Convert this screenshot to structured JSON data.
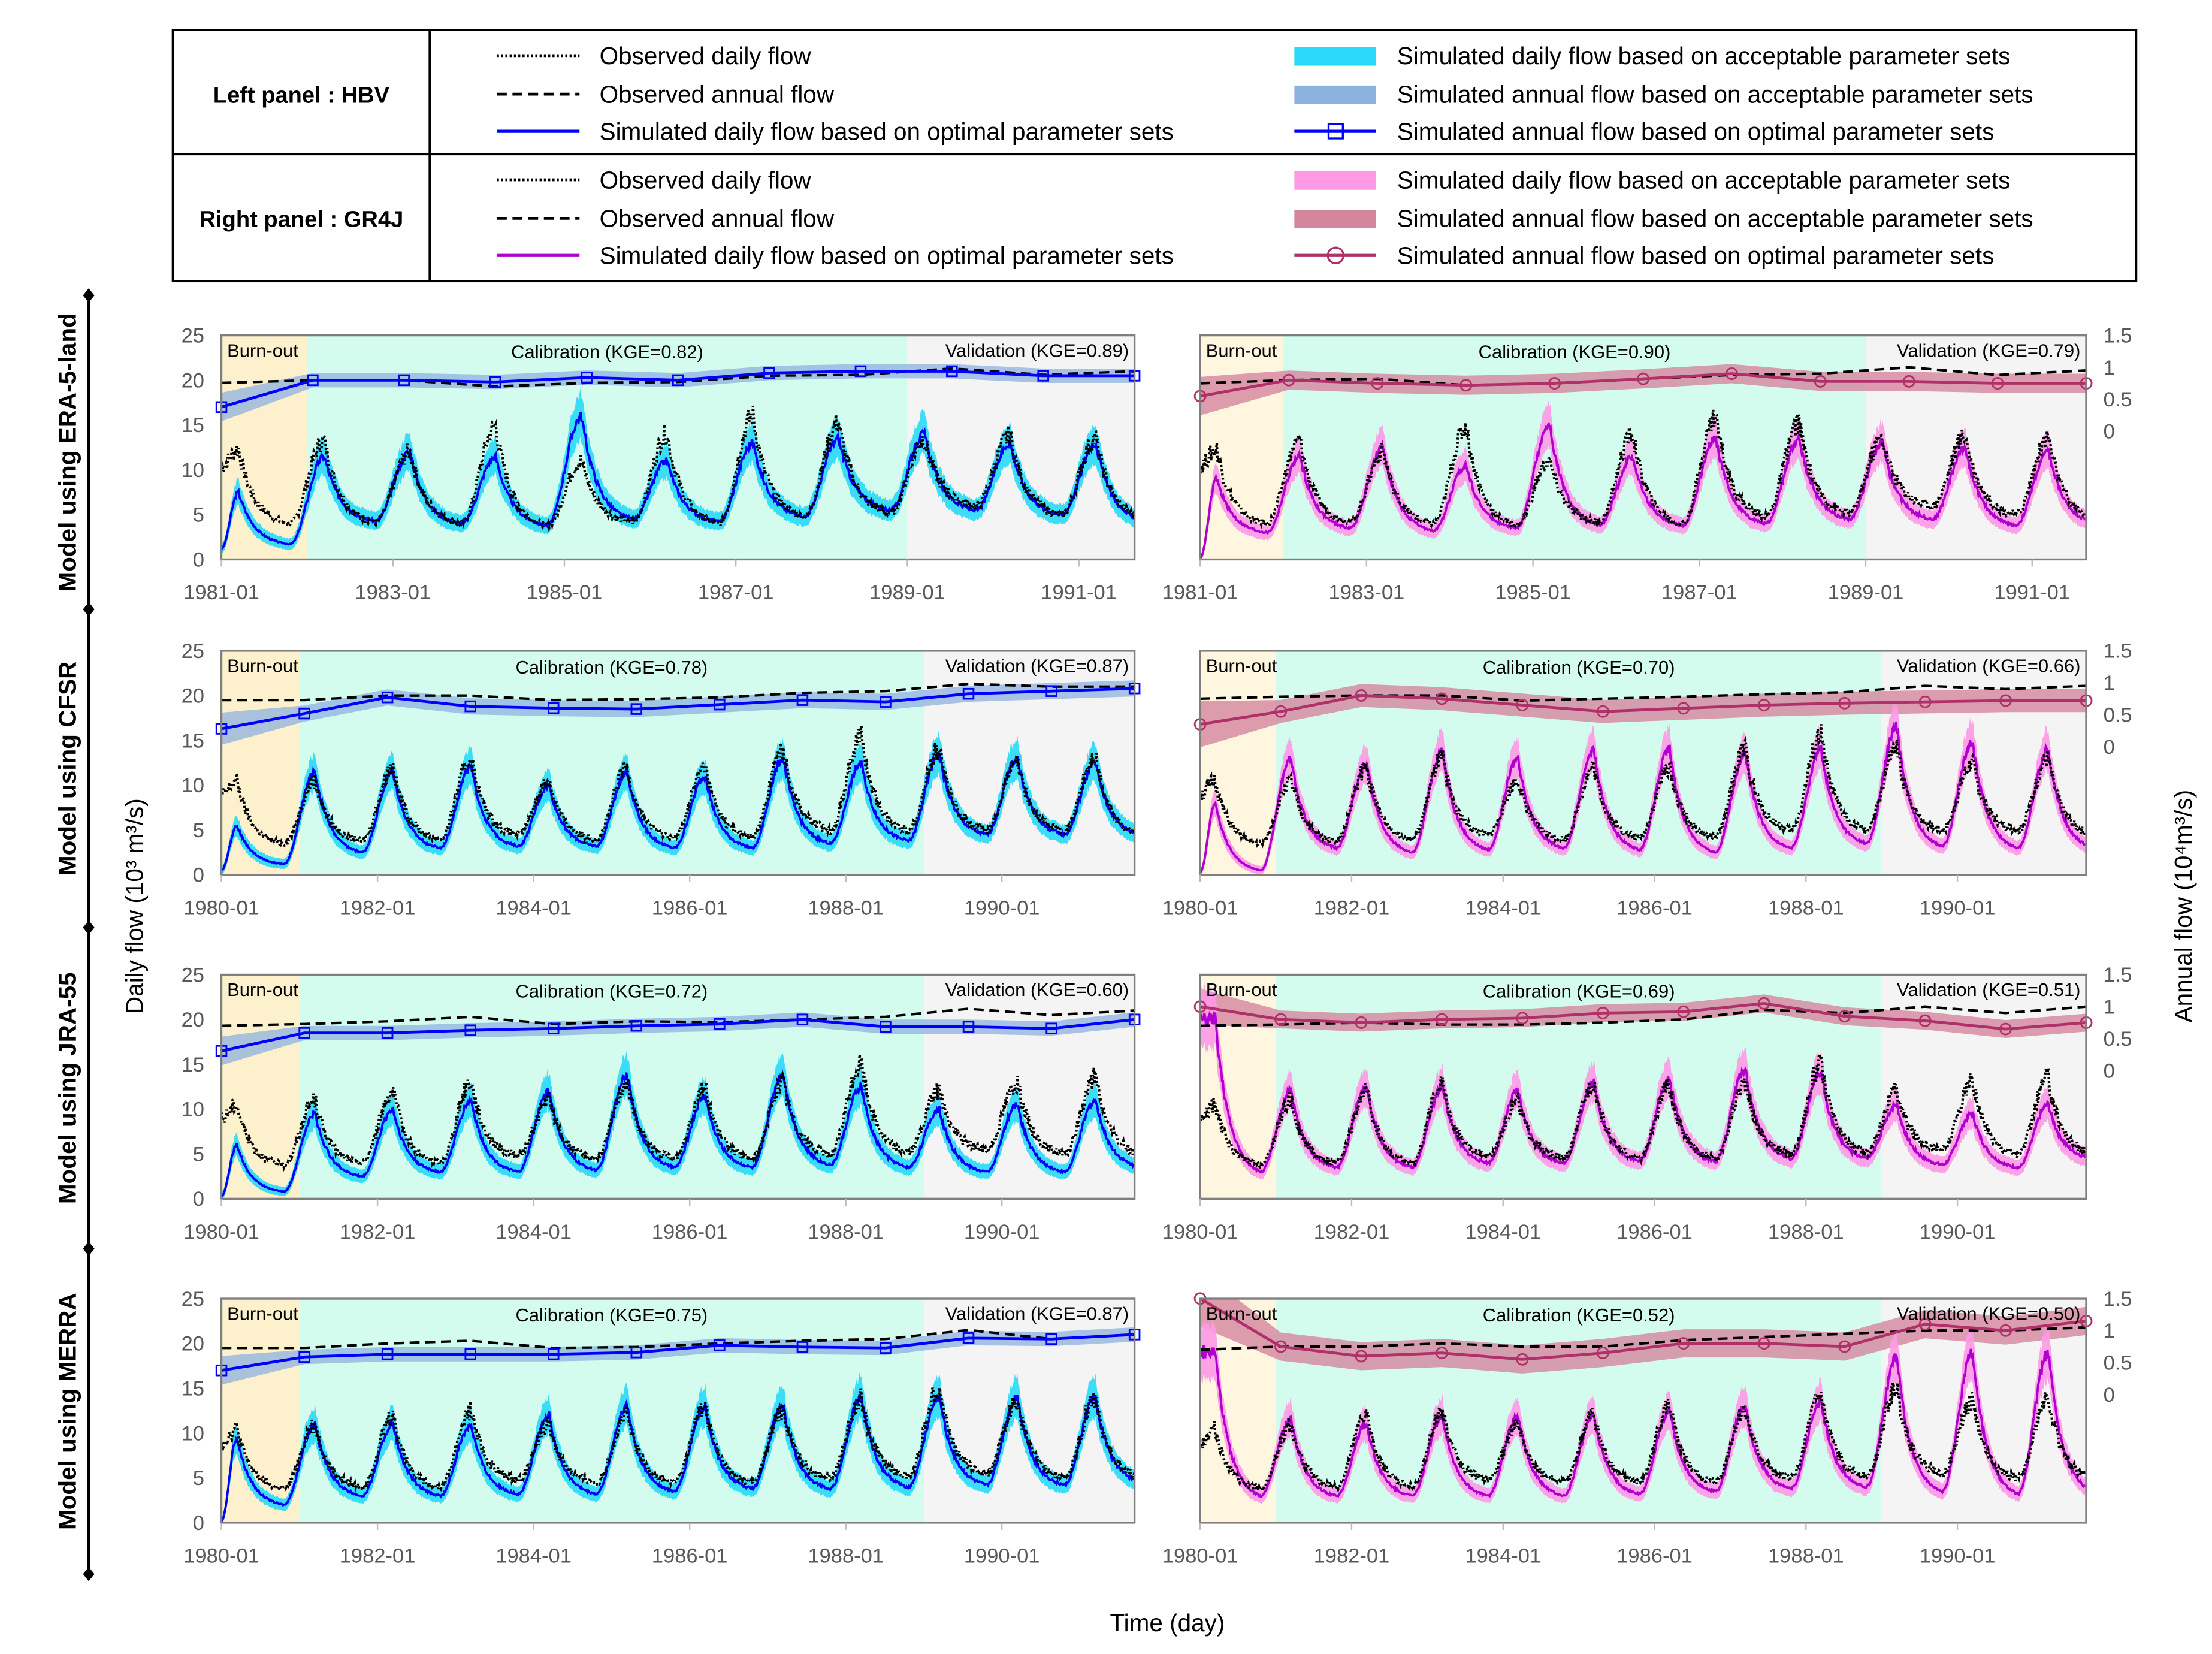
{
  "colors": {
    "obs": "#000000",
    "hbv_line": "#0000ff",
    "hbv_daily_band": "#29d9f7",
    "hbv_annual_band": "#8eb2e0",
    "gr4j_line": "#b000d0",
    "gr4j_daily_band": "#ff99e6",
    "gr4j_annual_band": "#d4869f",
    "gr4j_annual_line": "#b0306a",
    "burnout_bg": "#fdf0cc",
    "calibration_bg": "#d3fcef",
    "validation_bg": "#f4f4f4"
  },
  "legend": {
    "left_title": "Left panel : HBV",
    "right_title": "Right panel : GR4J",
    "hbv_items": [
      "Observed daily flow",
      "Observed annual flow",
      "Simulated daily flow based on optimal parameter sets",
      "Simulated daily flow based on acceptable parameter sets",
      "Simulated annual flow based on acceptable parameter sets",
      "Simulated annual flow based on optimal parameter sets"
    ],
    "gr4j_items": [
      "Observed daily flow",
      "Observed annual flow",
      "Simulated daily flow based on optimal parameter sets",
      "Simulated daily flow based on acceptable parameter sets",
      "Simulated annual flow based on acceptable parameter sets",
      "Simulated annual flow based on optimal parameter sets"
    ]
  },
  "axes": {
    "ylabel_left": "Daily flow (10³ m³/s)",
    "ylabel_right": "Annual flow (10⁴m³/s)",
    "xlabel": "Time (day)",
    "left_ticks": [
      "0",
      "5",
      "10",
      "15",
      "20",
      "25"
    ],
    "right_ticks": [
      "0",
      "0.5",
      "1",
      "1.5"
    ],
    "period_burnout": "Burn-out"
  },
  "rows": [
    "Model using ERA-5-land",
    "Model using CFSR",
    "Model using JRA-55",
    "Model using MERRA"
  ],
  "chart_data": [
    {
      "type": "line",
      "row": 0,
      "model": "HBV",
      "t_range": [
        1981.0,
        1991.65
      ],
      "ylim": [
        0,
        25
      ],
      "burnout_end": 1982.0,
      "calibration_end": 1989.0,
      "x_ticks": [
        "1981-01",
        "1983-01",
        "1985-01",
        "1987-01",
        "1989-01",
        "1991-01"
      ],
      "calibration_label": "Calibration (KGE=0.82)",
      "validation_label": "Validation (KGE=0.89)",
      "annual_sim": [
        17,
        20,
        20,
        19.8,
        20.3,
        20,
        20.8,
        21,
        21,
        20.5,
        20.5
      ],
      "annual_obs": [
        19.7,
        20,
        20,
        19.3,
        19.7,
        19.8,
        20.5,
        20.6,
        21.3,
        20.6,
        21
      ],
      "annual_band": 0.8,
      "years": [
        1981,
        1982,
        1983,
        1984,
        1985,
        1986,
        1987,
        1988,
        1989,
        1990,
        1991
      ],
      "obs_peak": [
        12.3,
        13.3,
        12,
        14.8,
        11,
        14,
        16,
        15.2,
        13.5,
        13.8,
        13.5
      ],
      "obs_trough": [
        4,
        4.2,
        4,
        3.8,
        4.2,
        4,
        4.8,
        5.2,
        6,
        5,
        4.5
      ],
      "sim_peak": [
        7.5,
        11.5,
        12,
        11.5,
        16,
        11,
        13,
        13.5,
        14,
        13,
        13
      ],
      "sim_trough": [
        1.7,
        4.3,
        4,
        3.8,
        4.5,
        4.2,
        4.8,
        5.5,
        5.5,
        5,
        4.2
      ],
      "sim_start": 1.2
    },
    {
      "type": "line",
      "row": 0,
      "model": "GR4J",
      "t_range": [
        1981.0,
        1991.65
      ],
      "ylim": [
        0,
        25
      ],
      "right_ylim": [
        0,
        1.5
      ],
      "burnout_end": 1982.0,
      "calibration_end": 1989.0,
      "x_ticks": [
        "1981-01",
        "1983-01",
        "1985-01",
        "1987-01",
        "1989-01",
        "1991-01"
      ],
      "calibration_label": "Calibration (KGE=0.90)",
      "validation_label": "Validation (KGE=0.79)",
      "annual_sim": [
        0.55,
        0.8,
        0.75,
        0.72,
        0.75,
        0.82,
        0.9,
        0.78,
        0.78,
        0.75,
        0.75
      ],
      "annual_obs": [
        0.75,
        0.8,
        0.82,
        0.72,
        0.75,
        0.82,
        0.88,
        0.9,
        1.0,
        0.88,
        0.95
      ],
      "annual_band": 0.15,
      "years": [
        1981,
        1982,
        1983,
        1984,
        1985,
        1986,
        1987,
        1988,
        1989,
        1990,
        1991
      ],
      "obs_peak": [
        12.3,
        13.3,
        12,
        14.8,
        11,
        14,
        16,
        15.2,
        13.5,
        13.8,
        13.5
      ],
      "obs_trough": [
        4,
        4.2,
        4,
        3.8,
        4.2,
        4,
        4.8,
        5.2,
        6,
        5,
        4.5
      ],
      "sim_peak": [
        9,
        11.5,
        12.5,
        10.5,
        15,
        11.5,
        13.5,
        13.5,
        13,
        12.5,
        12
      ],
      "sim_trough": [
        3,
        3.5,
        3.2,
        3.5,
        3.8,
        3.8,
        4,
        4.5,
        4.5,
        3.8,
        4
      ],
      "sim_start": 0.2
    },
    {
      "type": "line",
      "row": 1,
      "model": "HBV",
      "t_range": [
        1980.0,
        1991.7
      ],
      "ylim": [
        0,
        25
      ],
      "burnout_end": 1981.0,
      "calibration_end": 1989.0,
      "x_ticks": [
        "1980-01",
        "1982-01",
        "1984-01",
        "1986-01",
        "1988-01",
        "1990-01"
      ],
      "calibration_label": "Calibration (KGE=0.78)",
      "validation_label": "Validation (KGE=0.87)",
      "annual_sim": [
        16.3,
        18,
        19.8,
        18.8,
        18.6,
        18.5,
        19,
        19.5,
        19.3,
        20.2,
        20.5,
        20.8
      ],
      "annual_obs": [
        19.5,
        19.5,
        20,
        20,
        19.5,
        19.6,
        19.8,
        20.3,
        20.5,
        21.3,
        21,
        21
      ],
      "annual_band": 0.9,
      "years": [
        1980,
        1981,
        1982,
        1983,
        1984,
        1985,
        1986,
        1987,
        1988,
        1989,
        1990,
        1991
      ],
      "obs_peak": [
        10.5,
        10.5,
        12,
        13,
        10.5,
        12,
        12,
        14,
        15.5,
        14,
        12.5,
        13
      ],
      "obs_trough": [
        3.5,
        3.8,
        4,
        4.5,
        4,
        4.2,
        4.2,
        5,
        5,
        5,
        5,
        4.5
      ],
      "sim_peak": [
        5.5,
        11.5,
        11.5,
        12,
        10,
        11.5,
        11,
        13,
        12.5,
        13.5,
        13,
        12.5
      ],
      "sim_trough": [
        1.2,
        2.5,
        3,
        3.2,
        3.2,
        3,
        3,
        3.5,
        3.8,
        4.5,
        4.5,
        4.5
      ],
      "sim_start": 0.5
    },
    {
      "type": "line",
      "row": 1,
      "model": "GR4J",
      "t_range": [
        1980.0,
        1991.7
      ],
      "ylim": [
        0,
        25
      ],
      "right_ylim": [
        0,
        1.5
      ],
      "burnout_end": 1981.0,
      "calibration_end": 1989.0,
      "x_ticks": [
        "1980-01",
        "1982-01",
        "1984-01",
        "1986-01",
        "1988-01",
        "1990-01"
      ],
      "calibration_label": "Calibration (KGE=0.70)",
      "validation_label": "Validation (KGE=0.66)",
      "annual_sim": [
        0.35,
        0.55,
        0.8,
        0.75,
        0.65,
        0.55,
        0.6,
        0.65,
        0.68,
        0.7,
        0.72,
        0.72
      ],
      "annual_obs": [
        0.75,
        0.78,
        0.8,
        0.8,
        0.72,
        0.75,
        0.78,
        0.82,
        0.85,
        0.95,
        0.9,
        0.95
      ],
      "annual_band": 0.18,
      "years": [
        1980,
        1981,
        1982,
        1983,
        1984,
        1985,
        1986,
        1987,
        1988,
        1989,
        1990,
        1991
      ],
      "obs_peak": [
        10.5,
        10.5,
        12,
        13,
        10.5,
        12,
        12,
        14,
        15.5,
        14,
        12.5,
        13
      ],
      "obs_trough": [
        3.5,
        3.8,
        4,
        4.5,
        4,
        4.2,
        4.2,
        5,
        5,
        5,
        5,
        4.5
      ],
      "sim_peak": [
        8,
        13,
        12.5,
        14,
        13,
        14,
        14,
        13.5,
        14,
        16.5,
        15,
        14
      ],
      "sim_trough": [
        0.5,
        3,
        2.5,
        2.8,
        3,
        2.8,
        2.5,
        3,
        3.5,
        3.2,
        3,
        3
      ],
      "sim_start": 0.3
    },
    {
      "type": "line",
      "row": 2,
      "model": "HBV",
      "t_range": [
        1980.0,
        1991.7
      ],
      "ylim": [
        0,
        25
      ],
      "burnout_end": 1981.0,
      "calibration_end": 1989.0,
      "x_ticks": [
        "1980-01",
        "1982-01",
        "1984-01",
        "1986-01",
        "1988-01",
        "1990-01"
      ],
      "calibration_label": "Calibration (KGE=0.72)",
      "validation_label": "Validation (KGE=0.60)",
      "annual_sim": [
        16.5,
        18.5,
        18.5,
        18.8,
        19,
        19.3,
        19.5,
        20,
        19.2,
        19.2,
        19,
        20
      ],
      "annual_obs": [
        19.3,
        19.5,
        19.8,
        20.3,
        19.5,
        19.8,
        19.7,
        20,
        20.3,
        21.2,
        20.5,
        21
      ],
      "annual_band": 0.8,
      "years": [
        1980,
        1981,
        1982,
        1983,
        1984,
        1985,
        1986,
        1987,
        1988,
        1989,
        1990,
        1991
      ],
      "obs_peak": [
        10.5,
        11,
        12,
        13,
        11,
        13,
        12.5,
        13,
        15,
        12,
        13,
        13.5
      ],
      "obs_trough": [
        3.8,
        4,
        4,
        4.8,
        4.5,
        4.5,
        4.5,
        5,
        5.2,
        5.5,
        5,
        5
      ],
      "sim_peak": [
        6,
        9.5,
        10,
        11,
        12,
        14,
        11.5,
        14,
        12.5,
        10,
        10.5,
        11
      ],
      "sim_trough": [
        0.8,
        2.5,
        3,
        3,
        3.2,
        3.5,
        3.5,
        3.8,
        3.5,
        3,
        3,
        3.5
      ],
      "sim_start": 0.3
    },
    {
      "type": "line",
      "row": 2,
      "model": "GR4J",
      "t_range": [
        1980.0,
        1991.7
      ],
      "ylim": [
        0,
        25
      ],
      "right_ylim": [
        0,
        1.5
      ],
      "burnout_end": 1981.0,
      "calibration_end": 1989.0,
      "x_ticks": [
        "1980-01",
        "1982-01",
        "1984-01",
        "1986-01",
        "1988-01",
        "1990-01"
      ],
      "calibration_label": "Calibration (KGE=0.69)",
      "validation_label": "Validation (KGE=0.51)",
      "annual_sim": [
        1.0,
        0.8,
        0.75,
        0.8,
        0.82,
        0.9,
        0.92,
        1.05,
        0.85,
        0.78,
        0.65,
        0.75
      ],
      "annual_obs": [
        0.7,
        0.72,
        0.75,
        0.72,
        0.72,
        0.75,
        0.8,
        0.95,
        0.9,
        1.0,
        0.9,
        1.0
      ],
      "annual_band": 0.14,
      "years": [
        1980,
        1981,
        1982,
        1983,
        1984,
        1985,
        1986,
        1987,
        1988,
        1989,
        1990,
        1991
      ],
      "obs_peak": [
        10.5,
        11,
        12,
        13,
        11,
        13,
        12.5,
        13,
        15,
        12,
        13,
        13.5
      ],
      "obs_trough": [
        3.8,
        4,
        4,
        4.8,
        4.5,
        4.5,
        4.5,
        5,
        5.2,
        5.5,
        5,
        5
      ],
      "sim_peak": [
        20,
        12,
        12.5,
        12.5,
        12,
        13,
        13.5,
        14.5,
        14,
        10.5,
        9.5,
        10.5
      ],
      "sim_trough": [
        3,
        3.5,
        3.5,
        4,
        4,
        4.2,
        4.2,
        4.5,
        4.5,
        3.8,
        3.5,
        4.5
      ],
      "sim_start": 20
    },
    {
      "type": "line",
      "row": 3,
      "model": "HBV",
      "t_range": [
        1980.0,
        1991.7
      ],
      "ylim": [
        0,
        25
      ],
      "burnout_end": 1981.0,
      "calibration_end": 1989.0,
      "x_ticks": [
        "1980-01",
        "1982-01",
        "1984-01",
        "1986-01",
        "1988-01",
        "1990-01"
      ],
      "calibration_label": "Calibration (KGE=0.75)",
      "validation_label": "Validation (KGE=0.87)",
      "annual_sim": [
        17,
        18.5,
        18.8,
        18.8,
        18.8,
        19,
        19.8,
        19.6,
        19.5,
        20.6,
        20.5,
        21
      ],
      "annual_obs": [
        19.5,
        19.5,
        20,
        20.3,
        19.5,
        19.6,
        20,
        20.3,
        20.5,
        21.5,
        20.5,
        21
      ],
      "annual_band": 0.8,
      "years": [
        1980,
        1981,
        1982,
        1983,
        1984,
        1985,
        1986,
        1987,
        1988,
        1989,
        1990,
        1991
      ],
      "obs_peak": [
        10.5,
        11,
        12,
        12.5,
        11,
        12,
        13,
        12.5,
        14,
        15,
        13.5,
        14
      ],
      "obs_trough": [
        3.8,
        4,
        4,
        4.8,
        4.5,
        4.5,
        4.5,
        5,
        5.2,
        5.5,
        5,
        5
      ],
      "sim_peak": [
        9.5,
        11,
        11,
        11,
        12,
        13,
        13,
        13,
        14,
        14,
        14,
        14
      ],
      "sim_trough": [
        2,
        3,
        3,
        3.2,
        3.2,
        3.5,
        3.8,
        3.8,
        4,
        4.2,
        4.2,
        4.5
      ],
      "sim_start": 0.2
    },
    {
      "type": "line",
      "row": 3,
      "model": "GR4J",
      "t_range": [
        1980.0,
        1991.7
      ],
      "ylim": [
        0,
        25
      ],
      "right_ylim": [
        0,
        1.5
      ],
      "burnout_end": 1981.0,
      "calibration_end": 1989.0,
      "x_ticks": [
        "1980-01",
        "1982-01",
        "1984-01",
        "1986-01",
        "1988-01",
        "1990-01"
      ],
      "calibration_label": "Calibration (KGE=0.52)",
      "validation_label": "Validation (KGE=0.50)",
      "annual_sim": [
        1.5,
        0.75,
        0.6,
        0.65,
        0.55,
        0.65,
        0.8,
        0.8,
        0.75,
        1.1,
        1.0,
        1.15
      ],
      "annual_obs": [
        0.7,
        0.75,
        0.75,
        0.8,
        0.75,
        0.75,
        0.85,
        0.9,
        0.95,
        1.0,
        1.0,
        1.05
      ],
      "annual_band": 0.22,
      "years": [
        1980,
        1981,
        1982,
        1983,
        1984,
        1985,
        1986,
        1987,
        1988,
        1989,
        1990,
        1991
      ],
      "obs_peak": [
        10.5,
        11,
        12,
        12.5,
        11,
        12,
        13,
        12.5,
        14,
        15,
        13.5,
        14
      ],
      "obs_trough": [
        3.8,
        4,
        4,
        4.8,
        4.5,
        4.5,
        4.5,
        5,
        5.2,
        5.5,
        5,
        5
      ],
      "sim_peak": [
        19,
        11.5,
        11,
        12,
        12,
        12,
        12.5,
        13,
        13.5,
        18.5,
        19,
        19
      ],
      "sim_trough": [
        3,
        3,
        3,
        3,
        3,
        3.2,
        3.5,
        3.8,
        4,
        3.5,
        3.2,
        3.5
      ],
      "sim_start": 19
    }
  ]
}
